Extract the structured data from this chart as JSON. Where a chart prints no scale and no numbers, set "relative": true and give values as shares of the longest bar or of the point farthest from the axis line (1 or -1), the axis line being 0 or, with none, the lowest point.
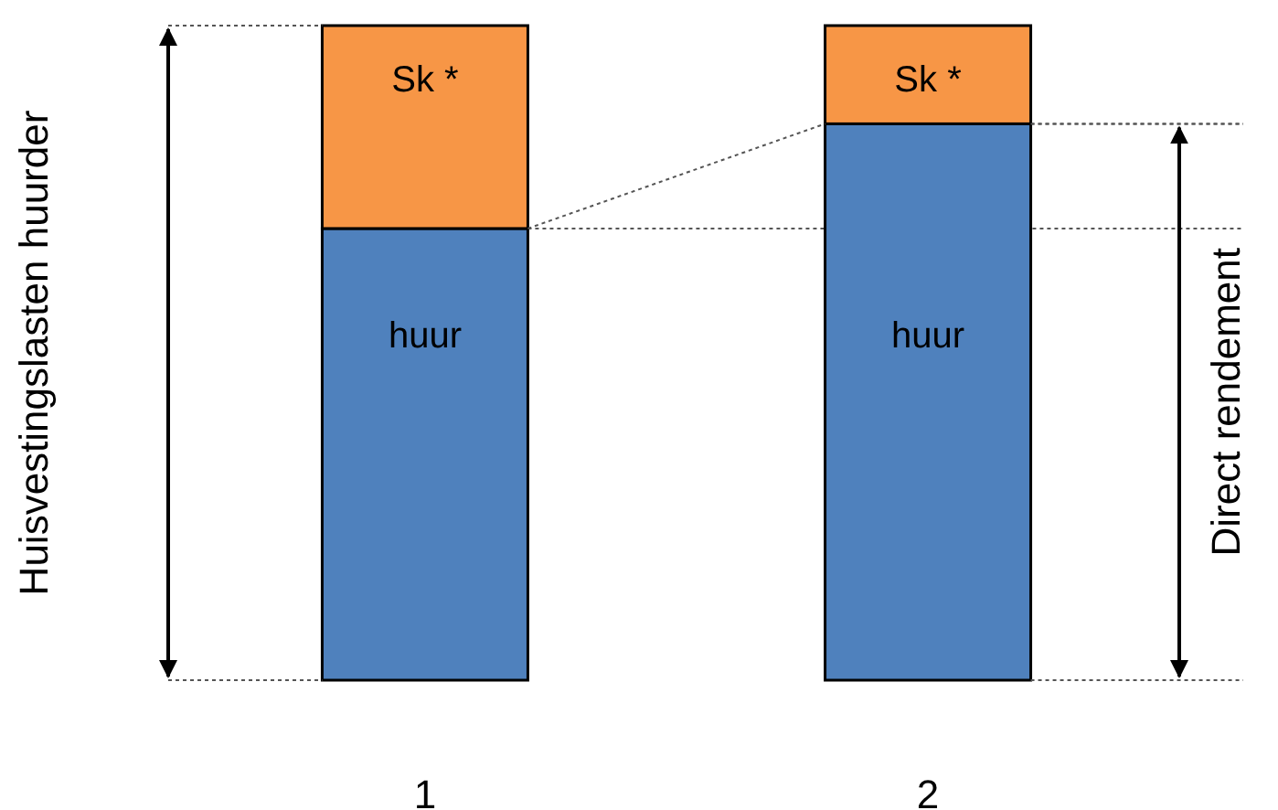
{
  "chart_data": {
    "type": "bar",
    "stacked": true,
    "relative": true,
    "categories": [
      "1",
      "2"
    ],
    "annotations": [
      "Huisvestingslasten huurder",
      "Direct rendement"
    ],
    "ref_lines": [
      {
        "axis": "y",
        "value": 0.69,
        "color": "#555555",
        "line_style": "dotted"
      },
      {
        "axis": "y",
        "value": 0.85,
        "color": "#555555",
        "line_style": "dotted"
      }
    ],
    "series": [
      {
        "name": "huur",
        "color": "#4f81bd",
        "values": [
          0.69,
          0.85
        ]
      },
      {
        "name": "Sk *",
        "color": "#f79646",
        "values": [
          0.31,
          0.15
        ]
      }
    ]
  }
}
